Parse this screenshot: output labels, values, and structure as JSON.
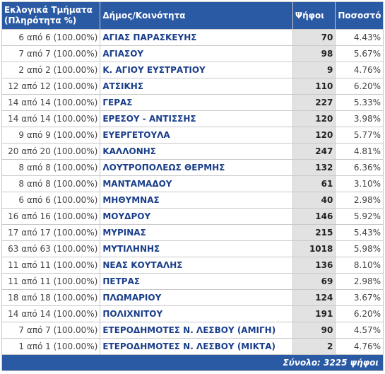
{
  "headers": {
    "sections": "Εκλογικά Τμήματα (Πληρότητα %)",
    "municipality": "Δήμος/Κοινότητα",
    "votes": "Ψήφοι",
    "percent": "Ποσοστό"
  },
  "rows": [
    {
      "sections": "6 από 6 (100.00%)",
      "name": "ΑΓΙΑΣ ΠΑΡΑΣΚΕΥΗΣ",
      "votes": "70",
      "pct": "4.43%"
    },
    {
      "sections": "7 από 7 (100.00%)",
      "name": "ΑΓΙΑΣΟΥ",
      "votes": "98",
      "pct": "5.67%"
    },
    {
      "sections": "2 από 2 (100.00%)",
      "name": "Κ. ΑΓΙΟΥ ΕΥΣΤΡΑΤΙΟΥ",
      "votes": "9",
      "pct": "4.76%"
    },
    {
      "sections": "12 από 12 (100.00%)",
      "name": "ΑΤΣΙΚΗΣ",
      "votes": "110",
      "pct": "6.20%"
    },
    {
      "sections": "14 από 14 (100.00%)",
      "name": "ΓΕΡΑΣ",
      "votes": "227",
      "pct": "5.33%"
    },
    {
      "sections": "14 από 14 (100.00%)",
      "name": "ΕΡΕΣΟΥ - ΑΝΤΙΣΣΗΣ",
      "votes": "120",
      "pct": "3.98%"
    },
    {
      "sections": "9 από 9 (100.00%)",
      "name": "ΕΥΕΡΓΕΤΟΥΛΑ",
      "votes": "120",
      "pct": "5.77%"
    },
    {
      "sections": "20 από 20 (100.00%)",
      "name": "ΚΑΛΛΟΝΗΣ",
      "votes": "247",
      "pct": "4.81%"
    },
    {
      "sections": "8 από 8 (100.00%)",
      "name": "ΛΟΥΤΡΟΠΟΛΕΩΣ ΘΕΡΜΗΣ",
      "votes": "132",
      "pct": "6.36%"
    },
    {
      "sections": "8 από 8 (100.00%)",
      "name": "ΜΑΝΤΑΜΑΔΟΥ",
      "votes": "61",
      "pct": "3.10%"
    },
    {
      "sections": "6 από 6 (100.00%)",
      "name": "ΜΗΘΥΜΝΑΣ",
      "votes": "40",
      "pct": "2.98%"
    },
    {
      "sections": "16 από 16 (100.00%)",
      "name": "ΜΟΥΔΡΟΥ",
      "votes": "146",
      "pct": "5.92%"
    },
    {
      "sections": "17 από 17 (100.00%)",
      "name": "ΜΥΡΙΝΑΣ",
      "votes": "215",
      "pct": "5.43%"
    },
    {
      "sections": "63 από 63 (100.00%)",
      "name": "ΜΥΤΙΛΗΝΗΣ",
      "votes": "1018",
      "pct": "5.98%"
    },
    {
      "sections": "11 από 11 (100.00%)",
      "name": "ΝΕΑΣ ΚΟΥΤΑΛΗΣ",
      "votes": "136",
      "pct": "8.10%"
    },
    {
      "sections": "11 από 11 (100.00%)",
      "name": "ΠΕΤΡΑΣ",
      "votes": "69",
      "pct": "2.98%"
    },
    {
      "sections": "18 από 18 (100.00%)",
      "name": "ΠΛΩΜΑΡΙΟΥ",
      "votes": "124",
      "pct": "3.67%"
    },
    {
      "sections": "14 από 14 (100.00%)",
      "name": "ΠΟΛΙΧΝΙΤΟΥ",
      "votes": "191",
      "pct": "6.20%"
    },
    {
      "sections": "7 από 7 (100.00%)",
      "name": "ΕΤΕΡΟΔΗΜΟΤΕΣ Ν. ΛΕΣΒΟΥ (ΑΜΙΓΗ)",
      "votes": "90",
      "pct": "4.57%"
    },
    {
      "sections": "1 από 1 (100.00%)",
      "name": "ΕΤΕΡΟΔΗΜΟΤΕΣ Ν. ΛΕΣΒΟΥ (ΜΙΚΤΑ)",
      "votes": "2",
      "pct": "4.76%"
    }
  ],
  "total": "Σύνολο: 3225 ψήφοι"
}
